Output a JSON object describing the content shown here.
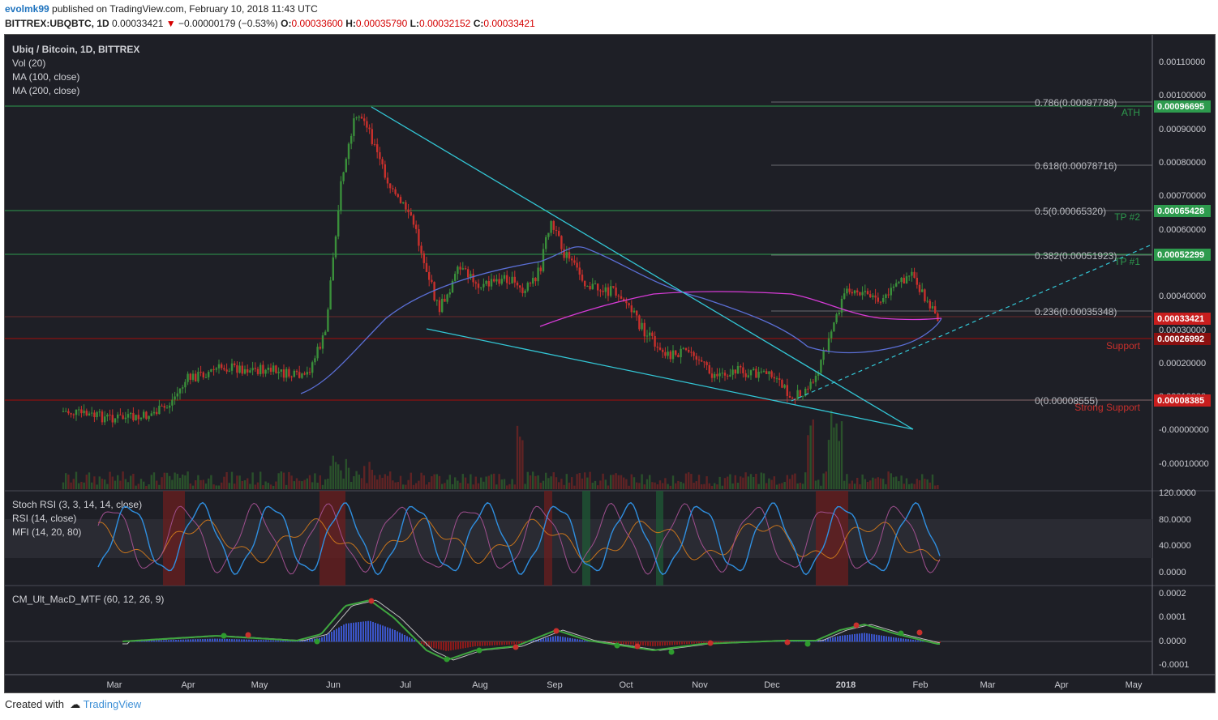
{
  "header": {
    "user": "evolmk99",
    "published": "published on TradingView.com, February 10, 2018 11:43 UTC",
    "symbol": "BITTREX:UBQBTC, 1D",
    "last": "0.00033421",
    "change": "−0.00000179 (−0.53%)",
    "o_label": "O:",
    "o_val": "0.00033600",
    "h_label": "H:",
    "h_val": "0.00035790",
    "l_label": "L:",
    "l_val": "0.00032152",
    "c_label": "C:",
    "c_val": "0.00033421"
  },
  "legend": {
    "title": "Ubiq / Bitcoin, 1D, BITTREX",
    "vol": "Vol (20)",
    "ma100": "MA (100, close)",
    "ma200": "MA (200, close)",
    "stoch": "Stoch RSI (3, 3, 14, 14, close)",
    "rsi": "RSI (14, close)",
    "mfi": "MFI (14, 20, 80)",
    "macd": "CM_Ult_MacD_MTF (60, 12, 26, 9)"
  },
  "price_axis": [
    "0.00110000",
    "0.00100000",
    "0.00090000",
    "0.00080000",
    "0.00070000",
    "0.00060000",
    "0.00040000",
    "0.00030000",
    "0.00020000",
    "0.00010000",
    "-0.00000000",
    "-0.00010000"
  ],
  "price_tags": [
    {
      "text": "0.00096695",
      "color": "#2e9b4e"
    },
    {
      "text": "0.00065428",
      "color": "#2e9b4e"
    },
    {
      "text": "0.00052299",
      "color": "#2e9b4e"
    },
    {
      "text": "0.00033421",
      "color": "#c81e1e"
    },
    {
      "text": "0.00026992",
      "color": "#8b1010"
    },
    {
      "text": "0.00008385",
      "color": "#c81e1e"
    }
  ],
  "fib_labels": [
    "0.786(0.00097789)",
    "0.618(0.00078716)",
    "0.5(0.00065320)",
    "0.382(0.00051923)",
    "0.236(0.00035348)",
    "0(0.00008555)"
  ],
  "line_labels": {
    "ath": "ATH",
    "tp2": "TP #2",
    "tp1": "TP #1",
    "support": "Support",
    "strong": "Strong Support"
  },
  "osc_axis": [
    "120.0000",
    "80.0000",
    "40.0000",
    "0.0000"
  ],
  "macd_axis": [
    "0.0002",
    "0.0001",
    "0.0000",
    "-0.0001"
  ],
  "time_axis": [
    "Mar",
    "Apr",
    "May",
    "Jun",
    "Jul",
    "Aug",
    "Sep",
    "Oct",
    "Nov",
    "Dec",
    "2018",
    "Feb",
    "Mar",
    "Apr",
    "May"
  ],
  "footer": {
    "created": "Created with",
    "brand": "TradingView"
  },
  "colors": {
    "background": "#1e1f26",
    "up": "#3a8f3a",
    "down": "#c8302c",
    "ma100": "#5b6fd6",
    "ma200": "#d63bd6",
    "trend": "#33c7d6",
    "green_line": "#2e9b4e",
    "red_line": "#8b1010",
    "stoch_k": "#2f8fe0",
    "rsi": "#c7741c"
  }
}
